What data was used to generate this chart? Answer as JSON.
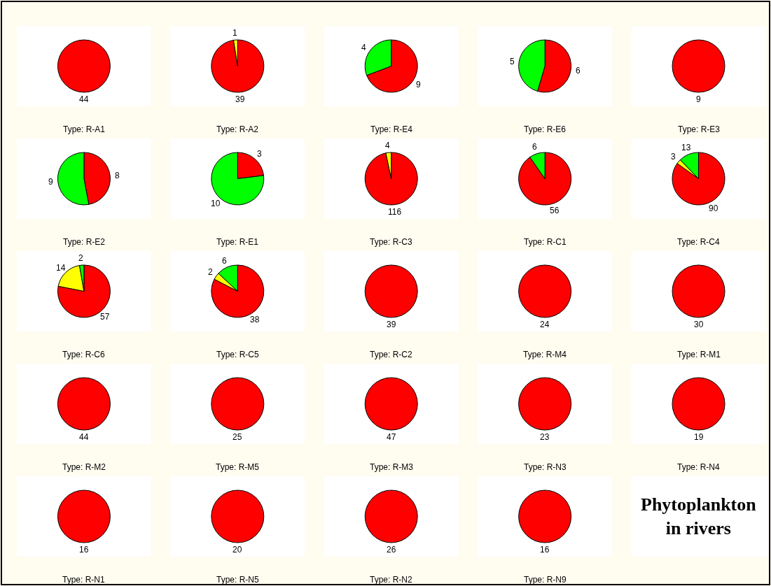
{
  "chart_data": [
    {
      "type": "pie",
      "title": "Type: R-A1",
      "categories": [
        null
      ],
      "values": [
        44
      ],
      "colors": [
        "#ff0000"
      ],
      "data_labels": true
    },
    {
      "type": "pie",
      "title": "Type: R-A2",
      "categories": [
        null,
        null
      ],
      "values": [
        39,
        1
      ],
      "colors": [
        "#ff0000",
        "#ffff00"
      ],
      "data_labels": true
    },
    {
      "type": "pie",
      "title": "Type: R-E4",
      "categories": [
        null,
        null
      ],
      "values": [
        9,
        4
      ],
      "colors": [
        "#ff0000",
        "#00ff00"
      ],
      "data_labels": true
    },
    {
      "type": "pie",
      "title": "Type: R-E6",
      "categories": [
        null,
        null
      ],
      "values": [
        6,
        5
      ],
      "colors": [
        "#ff0000",
        "#00ff00"
      ],
      "data_labels": true
    },
    {
      "type": "pie",
      "title": "Type: R-E3",
      "categories": [
        null
      ],
      "values": [
        9
      ],
      "colors": [
        "#ff0000"
      ],
      "data_labels": true
    },
    {
      "type": "pie",
      "title": "Type: R-E2",
      "categories": [
        null,
        null
      ],
      "values": [
        8,
        9
      ],
      "colors": [
        "#ff0000",
        "#00ff00"
      ],
      "data_labels": true
    },
    {
      "type": "pie",
      "title": "Type: R-E1",
      "categories": [
        null,
        null
      ],
      "values": [
        3,
        10
      ],
      "colors": [
        "#ff0000",
        "#00ff00"
      ],
      "data_labels": true
    },
    {
      "type": "pie",
      "title": "Type: R-C3",
      "categories": [
        null,
        null
      ],
      "values": [
        116,
        4
      ],
      "colors": [
        "#ff0000",
        "#ffff00"
      ],
      "data_labels": true
    },
    {
      "type": "pie",
      "title": "Type: R-C1",
      "categories": [
        null,
        null
      ],
      "values": [
        56,
        6
      ],
      "colors": [
        "#ff0000",
        "#00ff00"
      ],
      "data_labels": true
    },
    {
      "type": "pie",
      "title": "Type: R-C4",
      "categories": [
        null,
        null,
        null
      ],
      "values": [
        90,
        3,
        13
      ],
      "colors": [
        "#ff0000",
        "#ffff00",
        "#00ff00"
      ],
      "data_labels": true
    },
    {
      "type": "pie",
      "title": "Type: R-C6",
      "categories": [
        null,
        null,
        null
      ],
      "values": [
        57,
        14,
        2
      ],
      "colors": [
        "#ff0000",
        "#ffff00",
        "#00ff00"
      ],
      "data_labels": true
    },
    {
      "type": "pie",
      "title": "Type: R-C5",
      "categories": [
        null,
        null,
        null
      ],
      "values": [
        38,
        2,
        6
      ],
      "colors": [
        "#ff0000",
        "#ffff00",
        "#00ff00"
      ],
      "data_labels": true
    },
    {
      "type": "pie",
      "title": "Type: R-C2",
      "categories": [
        null
      ],
      "values": [
        39
      ],
      "colors": [
        "#ff0000"
      ],
      "data_labels": true
    },
    {
      "type": "pie",
      "title": "Type: R-M4",
      "categories": [
        null
      ],
      "values": [
        24
      ],
      "colors": [
        "#ff0000"
      ],
      "data_labels": true
    },
    {
      "type": "pie",
      "title": "Type: R-M1",
      "categories": [
        null
      ],
      "values": [
        30
      ],
      "colors": [
        "#ff0000"
      ],
      "data_labels": true
    },
    {
      "type": "pie",
      "title": "Type: R-M2",
      "categories": [
        null
      ],
      "values": [
        44
      ],
      "colors": [
        "#ff0000"
      ],
      "data_labels": true
    },
    {
      "type": "pie",
      "title": "Type: R-M5",
      "categories": [
        null
      ],
      "values": [
        25
      ],
      "colors": [
        "#ff0000"
      ],
      "data_labels": true
    },
    {
      "type": "pie",
      "title": "Type: R-M3",
      "categories": [
        null
      ],
      "values": [
        47
      ],
      "colors": [
        "#ff0000"
      ],
      "data_labels": true
    },
    {
      "type": "pie",
      "title": "Type: R-N3",
      "categories": [
        null
      ],
      "values": [
        23
      ],
      "colors": [
        "#ff0000"
      ],
      "data_labels": true
    },
    {
      "type": "pie",
      "title": "Type: R-N4",
      "categories": [
        null
      ],
      "values": [
        19
      ],
      "colors": [
        "#ff0000"
      ],
      "data_labels": true
    },
    {
      "type": "pie",
      "title": "Type: R-N1",
      "categories": [
        null
      ],
      "values": [
        16
      ],
      "colors": [
        "#ff0000"
      ],
      "data_labels": true
    },
    {
      "type": "pie",
      "title": "Type: R-N5",
      "categories": [
        null
      ],
      "values": [
        20
      ],
      "colors": [
        "#ff0000"
      ],
      "data_labels": true
    },
    {
      "type": "pie",
      "title": "Type: R-N2",
      "categories": [
        null
      ],
      "values": [
        26
      ],
      "colors": [
        "#ff0000"
      ],
      "data_labels": true
    },
    {
      "type": "pie",
      "title": "Type: R-N9",
      "categories": [
        null
      ],
      "values": [
        16
      ],
      "colors": [
        "#ff0000"
      ],
      "data_labels": true
    },
    {
      "type": "other",
      "title": "Phytoplankton in rivers"
    }
  ]
}
